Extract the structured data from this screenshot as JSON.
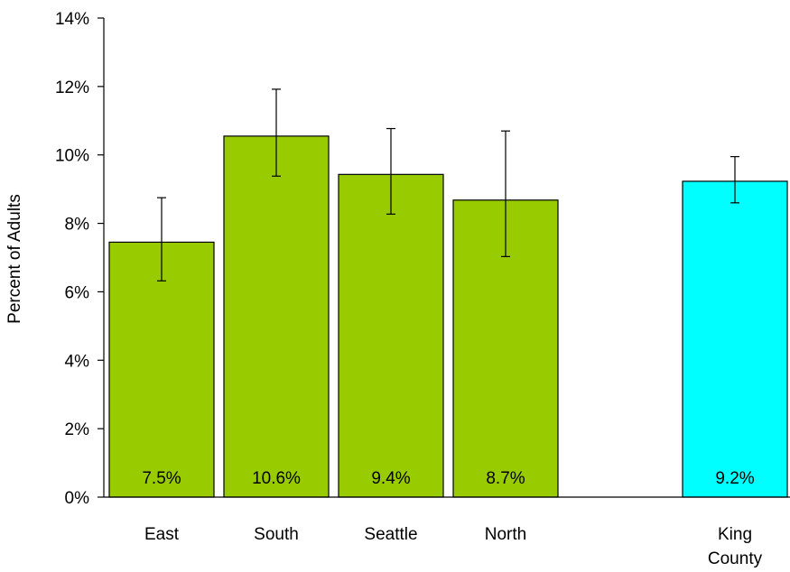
{
  "chart_data": {
    "type": "bar",
    "title": "",
    "xlabel": "",
    "ylabel": "Percent of Adults",
    "ylim": [
      0,
      14
    ],
    "yticks": [
      0,
      2,
      4,
      6,
      8,
      10,
      12,
      14
    ],
    "ytick_labels": [
      "0%",
      "2%",
      "4%",
      "6%",
      "8%",
      "10%",
      "12%",
      "14%"
    ],
    "grid": false,
    "legend": "none",
    "categories": [
      {
        "lines": [
          "East"
        ]
      },
      {
        "lines": [
          "South"
        ]
      },
      {
        "lines": [
          "Seattle"
        ]
      },
      {
        "lines": [
          "North"
        ]
      },
      {
        "lines": [
          "King",
          "County"
        ]
      }
    ],
    "values": [
      7.45,
      10.55,
      9.43,
      8.68,
      9.23
    ],
    "data_labels": [
      "7.5%",
      "10.6%",
      "9.4%",
      "8.7%",
      "9.2%"
    ],
    "error_low": [
      6.32,
      9.38,
      8.27,
      7.03,
      8.6
    ],
    "error_high": [
      8.75,
      11.92,
      10.77,
      10.7,
      9.95
    ],
    "colors": [
      "#99cc00",
      "#99cc00",
      "#99cc00",
      "#99cc00",
      "#00ffff"
    ]
  }
}
